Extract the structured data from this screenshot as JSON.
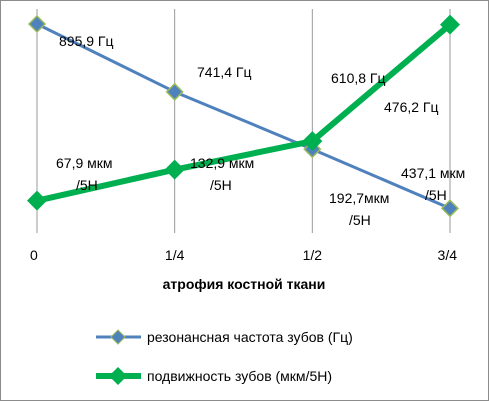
{
  "chart_data": {
    "type": "line",
    "xlabel": "атрофия костной ткани",
    "categories": [
      "0",
      "1/4",
      "1/2",
      "3/4"
    ],
    "grid": "vertical",
    "legend_position": "bottom",
    "series": [
      {
        "name": "резонансная частота зубов (Гц)",
        "color": "#4f81bd",
        "marker": "diamond",
        "values": [
          895.9,
          741.4,
          610.8,
          476.2
        ],
        "labels": [
          [
            "895,9 Гц"
          ],
          [
            "741,4 Гц"
          ],
          [
            "610,8 Гц"
          ],
          [
            "476,2 Гц"
          ]
        ]
      },
      {
        "name": "подвижность зубов (мкм/5Н)",
        "color": "#00b050",
        "marker": "diamond",
        "values": [
          67.9,
          132.9,
          192.7,
          437.1
        ],
        "labels": [
          [
            "67,9 мкм",
            "/5Н"
          ],
          [
            "132,9 мкм",
            "/5Н"
          ],
          [
            "192,7мкм",
            "/5Н"
          ],
          [
            "437,1 мкм",
            "/5Н"
          ]
        ]
      }
    ]
  }
}
